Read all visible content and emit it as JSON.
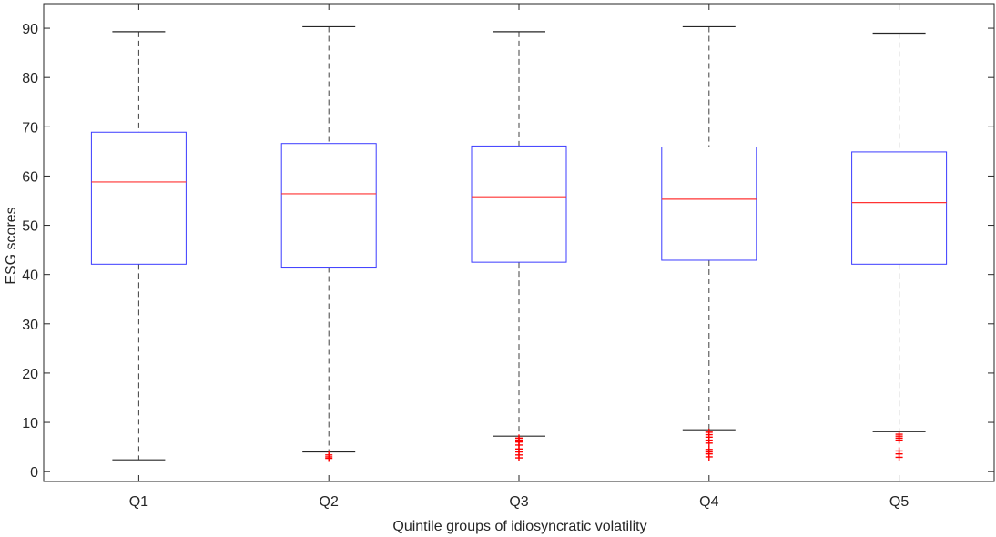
{
  "chart_data": {
    "type": "box",
    "title": "",
    "xlabel": "Quintile groups of idiosyncratic volatility",
    "ylabel": "ESG scores",
    "ylim": [
      -2,
      95
    ],
    "yticks": [
      0,
      10,
      20,
      30,
      40,
      50,
      60,
      70,
      80,
      90
    ],
    "grid": false,
    "categories": [
      "Q1",
      "Q2",
      "Q3",
      "Q4",
      "Q5"
    ],
    "boxes": [
      {
        "label": "Q1",
        "whisker_low": 2.4,
        "q1": 42.1,
        "median": 58.8,
        "q3": 68.9,
        "whisker_high": 89.3,
        "outliers": []
      },
      {
        "label": "Q2",
        "whisker_low": 4.0,
        "q1": 41.5,
        "median": 56.4,
        "q3": 66.6,
        "whisker_high": 90.3,
        "outliers": [
          3.4,
          3.0,
          2.7
        ]
      },
      {
        "label": "Q3",
        "whisker_low": 7.2,
        "q1": 42.5,
        "median": 55.8,
        "q3": 66.1,
        "whisker_high": 89.3,
        "outliers": [
          6.8,
          6.4,
          6.0,
          5.4,
          4.6,
          4.0,
          3.4,
          2.8
        ]
      },
      {
        "label": "Q4",
        "whisker_low": 8.5,
        "q1": 42.9,
        "median": 55.3,
        "q3": 65.9,
        "whisker_high": 90.3,
        "outliers": [
          8.0,
          7.5,
          7.0,
          6.4,
          5.8,
          4.5,
          4.0,
          3.6,
          3.0
        ]
      },
      {
        "label": "Q5",
        "whisker_low": 8.1,
        "q1": 42.1,
        "median": 54.6,
        "q3": 64.9,
        "whisker_high": 89.0,
        "outliers": [
          7.6,
          7.2,
          6.8,
          6.4,
          4.2,
          3.6,
          2.9
        ]
      }
    ],
    "colors": {
      "box": "#3b3bff",
      "median": "#ff3333",
      "whisker": "#404040",
      "outlier": "#ff0000",
      "axis": "#262626"
    }
  }
}
